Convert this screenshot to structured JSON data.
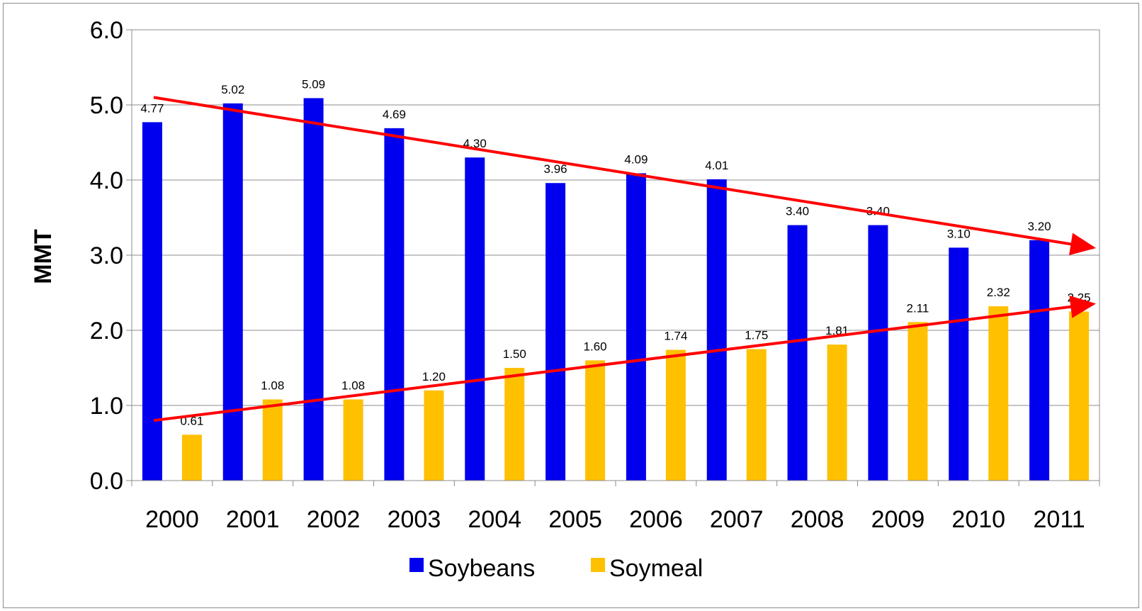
{
  "chart_data": {
    "type": "bar",
    "ylabel": "MMT",
    "xlabel": "",
    "ylim": [
      0,
      6
    ],
    "yticks": [
      "0.0",
      "1.0",
      "2.0",
      "3.0",
      "4.0",
      "5.0",
      "6.0"
    ],
    "grid": "horizontal",
    "legend_position": "bottom",
    "categories": [
      "2000",
      "2001",
      "2002",
      "2003",
      "2004",
      "2005",
      "2006",
      "2007",
      "2008",
      "2009",
      "2010",
      "2011"
    ],
    "series": [
      {
        "name": "Soybeans",
        "color": "#0000ee",
        "values": [
          4.77,
          5.02,
          5.09,
          4.69,
          4.3,
          3.96,
          4.09,
          4.01,
          3.4,
          3.4,
          3.1,
          3.2
        ],
        "labels": [
          "4.77",
          "5.02",
          "5.09",
          "4.69",
          "4.30",
          "3.96",
          "4.09",
          "4.01",
          "3.40",
          "3.40",
          "3.10",
          "3.20"
        ]
      },
      {
        "name": "Soymeal",
        "color": "#ffc000",
        "values": [
          0.61,
          1.08,
          1.08,
          1.2,
          1.5,
          1.6,
          1.74,
          1.75,
          1.81,
          2.11,
          2.32,
          2.25
        ],
        "labels": [
          "0.61",
          "1.08",
          "1.08",
          "1.20",
          "1.50",
          "1.60",
          "1.74",
          "1.75",
          "1.81",
          "2.11",
          "2.32",
          "2.25"
        ]
      }
    ],
    "trend_arrows": [
      {
        "series": "Soybeans",
        "color": "#ff0000",
        "from": [
          "2000",
          5.1
        ],
        "to": [
          "2011",
          3.1
        ]
      },
      {
        "series": "Soymeal",
        "color": "#ff0000",
        "from": [
          "2000",
          0.8
        ],
        "to": [
          "2011",
          2.35
        ]
      }
    ]
  }
}
